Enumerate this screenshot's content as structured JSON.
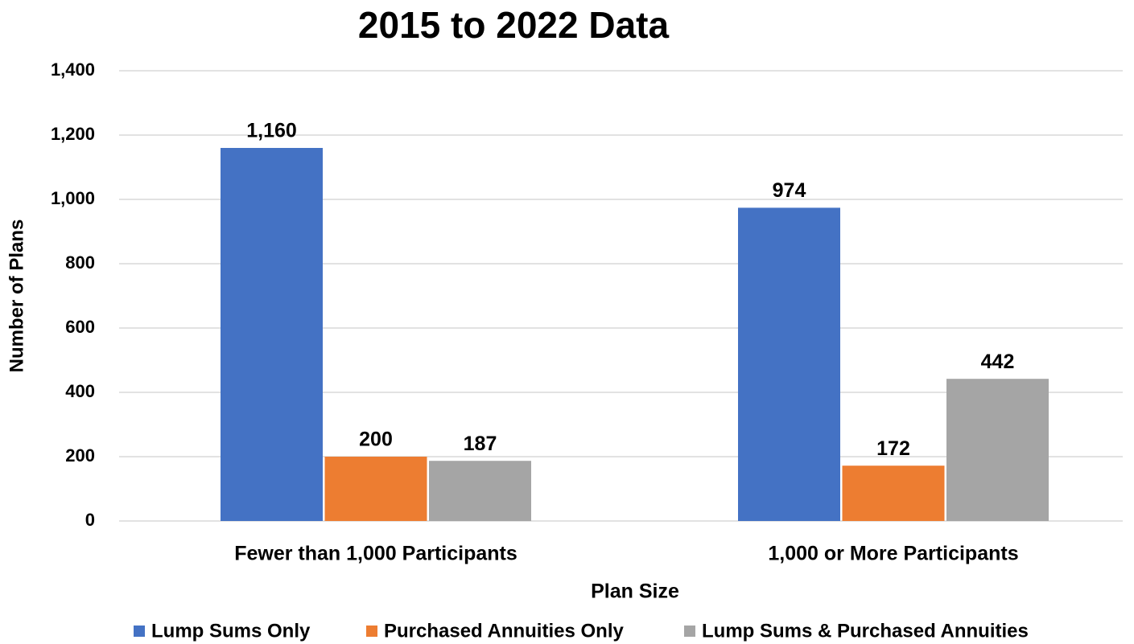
{
  "chart_data": {
    "type": "bar",
    "title": "2015 to 2022 Data",
    "x_label": "Plan Size",
    "y_label": "Number of Plans",
    "categories": [
      "Fewer than 1,000 Participants",
      "1,000 or More Participants"
    ],
    "series": [
      {
        "name": "Lump Sums Only",
        "color": "#4472c4",
        "values": [
          1160,
          974
        ],
        "value_labels": [
          "1,160",
          "974"
        ]
      },
      {
        "name": "Purchased Annuities Only",
        "color": "#ed7d31",
        "values": [
          200,
          172
        ],
        "value_labels": [
          "200",
          "172"
        ]
      },
      {
        "name": "Lump Sums & Purchased Annuities",
        "color": "#a5a5a5",
        "values": [
          187,
          442
        ],
        "value_labels": [
          "187",
          "442"
        ]
      }
    ],
    "ylim": [
      0,
      1400
    ],
    "yticks": [
      0,
      200,
      400,
      600,
      800,
      {
        "value": 1000,
        "label": "1,000"
      },
      {
        "value": 1200,
        "label": "1,200"
      },
      {
        "value": 1400,
        "label": "1,400"
      }
    ],
    "grid": true,
    "legend": "bottom"
  }
}
